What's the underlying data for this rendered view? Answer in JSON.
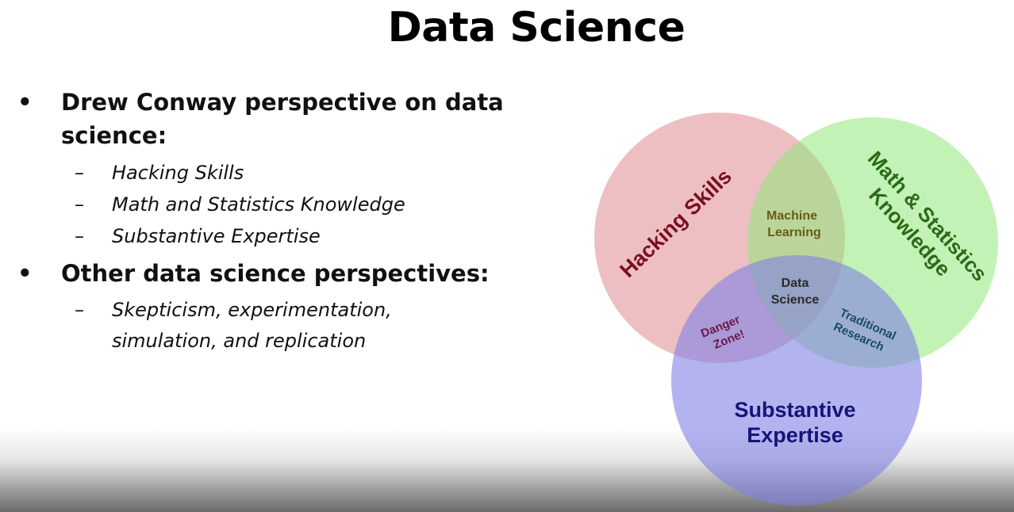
{
  "slide": {
    "title": "Data Science",
    "bullets": [
      {
        "text": "Drew Conway perspective on data science:",
        "sub": [
          "Hacking Skills",
          "Math and Statistics Knowledge",
          "Substantive Expertise"
        ]
      },
      {
        "text": "Other data science perspectives:",
        "sub": [
          "Skepticism, experimentation, simulation, and replication"
        ]
      }
    ]
  },
  "venn": {
    "circles": [
      {
        "label": "Hacking Skills",
        "color": "#e08a90"
      },
      {
        "label_line1": "Math & Statistics",
        "label_line2": "Knowledge",
        "color": "#90e878"
      },
      {
        "label_line1": "Substantive",
        "label_line2": "Expertise",
        "color": "#8080e6"
      }
    ],
    "intersections": {
      "machine_learning": {
        "line1": "Machine",
        "line2": "Learning"
      },
      "danger_zone": {
        "line1": "Danger",
        "line2": "Zone!"
      },
      "traditional_research": {
        "line1": "Traditional",
        "line2": "Research"
      },
      "data_science": {
        "line1": "Data",
        "line2": "Science"
      }
    },
    "text_colors": {
      "hacking": "#7a1020",
      "math": "#2a6a18",
      "substantive": "#141478",
      "inner": "#2a2a2a"
    }
  }
}
